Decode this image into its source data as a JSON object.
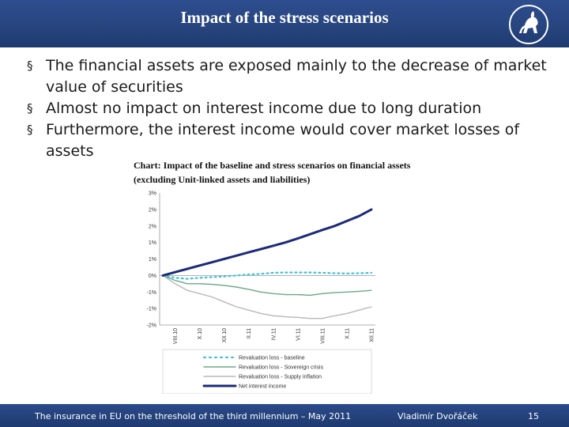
{
  "header": {
    "title": "Impact of the stress scenarios"
  },
  "bullets": [
    "The financial assets are exposed mainly to the decrease of market value of securities",
    "Almost no impact on interest income due to long duration",
    "Furthermore, the interest income would cover market losses of assets"
  ],
  "chart_caption": "Chart: Impact of the baseline and stress scenarios on financial assets (excluding Unit-linked assets and liabilities)",
  "footer": {
    "left": "The insurance in EU on the threshold of the third millennium – May 2011",
    "author": "Vladimír Dvořáček",
    "page": "15"
  },
  "colors": {
    "header_bg": "#27457f",
    "footer_bg": "#1f3a70"
  },
  "chart_data": {
    "type": "line",
    "title": "",
    "y_tick_labels": [
      "3%",
      "2%",
      "2%",
      "1%",
      "1%",
      "0%",
      "-1%",
      "-1%",
      "-2%"
    ],
    "y_tick_values": [
      2.5,
      2.0,
      1.5,
      1.0,
      0.5,
      0.0,
      -0.5,
      -1.0,
      -1.5
    ],
    "ylim": [
      -1.5,
      2.5
    ],
    "x_tick_labels": [
      "VIII.10",
      "X.10",
      "XII.10",
      "II.11",
      "IV.11",
      "VI.11",
      "VIII.11",
      "X.11",
      "XII.11"
    ],
    "x_tick_positions": [
      1,
      3,
      5,
      7,
      9,
      11,
      13,
      15,
      17
    ],
    "x_range": [
      0,
      17
    ],
    "grid": false,
    "legend_position": "bottom",
    "series": [
      {
        "name": "Revaluation loss - baseline",
        "color": "#45c1d6",
        "style": "dotted",
        "values": [
          0,
          -0.07,
          -0.1,
          -0.07,
          -0.05,
          -0.03,
          0.0,
          0.03,
          0.05,
          0.08,
          0.09,
          0.09,
          0.09,
          0.08,
          0.07,
          0.06,
          0.07,
          0.08
        ]
      },
      {
        "name": "Revaluation loss - Sovereign crisis",
        "color": "#6aa886",
        "style": "solid",
        "values": [
          0,
          -0.15,
          -0.25,
          -0.25,
          -0.27,
          -0.3,
          -0.35,
          -0.42,
          -0.5,
          -0.55,
          -0.58,
          -0.58,
          -0.6,
          -0.55,
          -0.52,
          -0.5,
          -0.48,
          -0.45
        ]
      },
      {
        "name": "Revaluation loss - Supply inflation",
        "color": "#b8b8b8",
        "style": "solid",
        "values": [
          0,
          -0.25,
          -0.45,
          -0.55,
          -0.65,
          -0.8,
          -0.95,
          -1.05,
          -1.15,
          -1.22,
          -1.25,
          -1.27,
          -1.3,
          -1.3,
          -1.22,
          -1.15,
          -1.05,
          -0.95
        ]
      },
      {
        "name": "Net interest income",
        "color": "#1c2a7a",
        "style": "solid",
        "values": [
          0,
          0.1,
          0.2,
          0.3,
          0.4,
          0.5,
          0.6,
          0.7,
          0.8,
          0.9,
          1.0,
          1.12,
          1.25,
          1.38,
          1.5,
          1.65,
          1.8,
          2.0
        ]
      }
    ]
  }
}
